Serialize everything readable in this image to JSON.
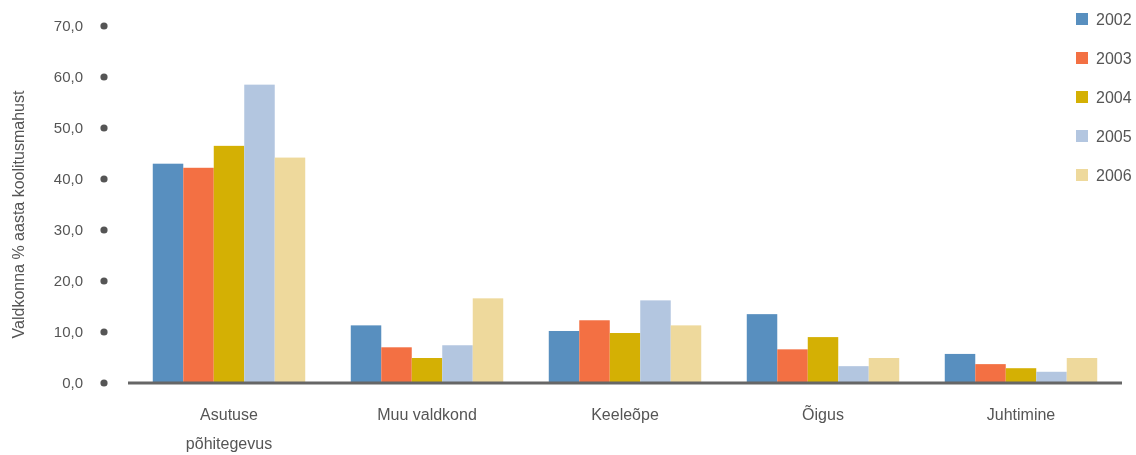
{
  "chart_data": {
    "type": "bar",
    "ylabel": "Valdkonna % aasta koolitusmahust",
    "categories": [
      "Asutuse põhitegevus",
      "Muu valdkond",
      "Keeleõpe",
      "Õigus",
      "Juhtimine"
    ],
    "series": [
      {
        "name": "2002",
        "color": "#588fbf",
        "values": [
          43.0,
          11.3,
          10.2,
          13.5,
          5.7
        ]
      },
      {
        "name": "2003",
        "color": "#f37043",
        "values": [
          42.2,
          7.0,
          12.3,
          6.6,
          3.7
        ]
      },
      {
        "name": "2004",
        "color": "#d4b004",
        "values": [
          46.5,
          4.9,
          9.8,
          9.0,
          2.9
        ]
      },
      {
        "name": "2005",
        "color": "#b3c6e0",
        "values": [
          58.5,
          7.4,
          16.2,
          3.3,
          2.2
        ]
      },
      {
        "name": "2006",
        "color": "#eed99c",
        "values": [
          44.2,
          16.6,
          11.3,
          4.9,
          4.9
        ]
      }
    ],
    "ylim": [
      0,
      70
    ],
    "yticks": [
      {
        "value": 0,
        "label": "0,0"
      },
      {
        "value": 10,
        "label": "10,0"
      },
      {
        "value": 20,
        "label": "20,0"
      },
      {
        "value": 30,
        "label": "30,0"
      },
      {
        "value": 40,
        "label": "40,0"
      },
      {
        "value": 50,
        "label": "50,0"
      },
      {
        "value": 60,
        "label": "60,0"
      },
      {
        "value": 70,
        "label": "70,0"
      }
    ],
    "legend": "top right"
  }
}
